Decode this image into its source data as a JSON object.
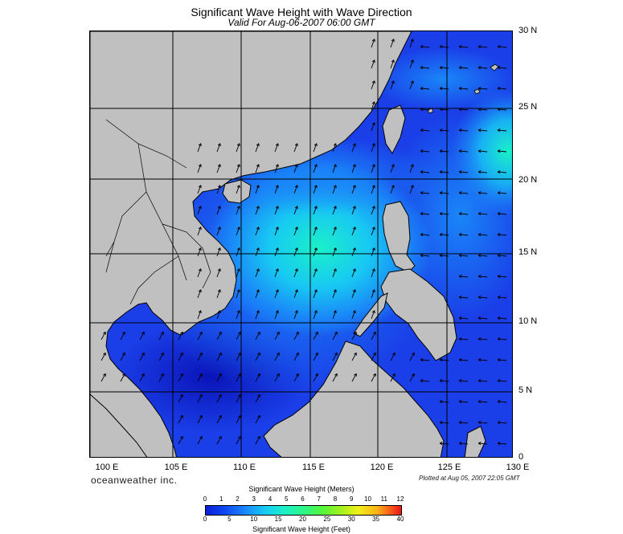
{
  "header": {
    "title": "Significant Wave Height with Wave Direction",
    "subtitle": "Valid For Aug-06-2007 06:00 GMT"
  },
  "map": {
    "lat_labels": [
      "30 N",
      "25 N",
      "20 N",
      "15 N",
      "10 N",
      "5 N",
      "0"
    ],
    "lon_labels": [
      "100 E",
      "105 E",
      "110 E",
      "115 E",
      "120 E",
      "125 E",
      "130 E"
    ],
    "colors": {
      "land": "#c0c0c0",
      "sea_low": "#0b1fd8",
      "sea_mid": "#1a86f8",
      "sea_high": "#1af0c8",
      "arrow": "#000000"
    }
  },
  "footer": {
    "brand": "oceanweather inc.",
    "plotted": "Plotted at Aug 05, 2007 22:05 GMT"
  },
  "legend": {
    "meters_title": "Significant Wave Height (Meters)",
    "meters_ticks": [
      "0",
      "1",
      "2",
      "3",
      "4",
      "5",
      "6",
      "7",
      "8",
      "9",
      "10",
      "11",
      "12"
    ],
    "feet_ticks": [
      "0",
      "5",
      "10",
      "15",
      "20",
      "25",
      "30",
      "35",
      "40"
    ],
    "feet_title": "Significant Wave Height (Feet)"
  }
}
